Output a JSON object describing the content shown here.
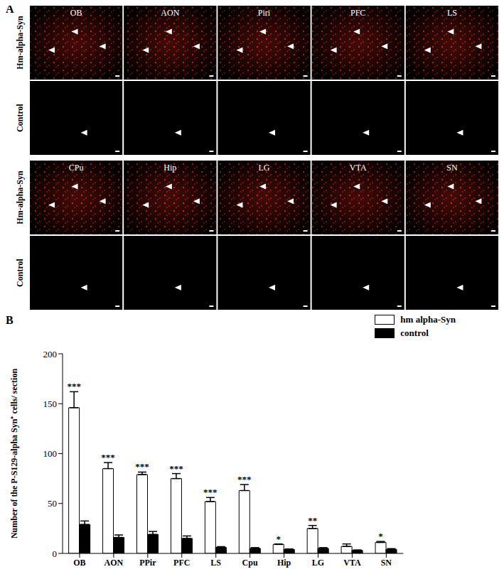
{
  "panel_a": {
    "label": "A",
    "groups": [
      {
        "regions": [
          "OB",
          "AON",
          "Piri",
          "PFC",
          "LS"
        ],
        "rows": [
          "Hm-alpha-Syn",
          "Control"
        ]
      },
      {
        "regions": [
          "CPu",
          "Hip",
          "LG",
          "VTA",
          "SN"
        ],
        "rows": [
          "Hm-alpha-Syn",
          "Control"
        ]
      }
    ]
  },
  "chart_data": {
    "type": "bar",
    "panel_label": "B",
    "y_label": "Number of the P-S129-alpha Syn⁺ cells/ section",
    "categories": [
      "OB",
      "AON",
      "PPir",
      "PFC",
      "LS",
      "Cpu",
      "Hip",
      "LG",
      "VTA",
      "SN"
    ],
    "series": [
      {
        "name": "hm alpha-Syn",
        "color": "#ffffff",
        "values": [
          146,
          85,
          79,
          75,
          52,
          63,
          9,
          25,
          7,
          11
        ],
        "errors": [
          16,
          6,
          2.5,
          5,
          4,
          6,
          0.5,
          3,
          2.5,
          1
        ]
      },
      {
        "name": "control",
        "color": "#000000",
        "values": [
          29,
          16,
          19,
          15,
          6,
          5,
          4,
          5,
          3,
          4
        ],
        "errors": [
          3.5,
          2.5,
          3,
          2.5,
          0.8,
          0.8,
          0.5,
          0.8,
          0.5,
          0.8
        ]
      }
    ],
    "significance": [
      "***",
      "***",
      "***",
      "***",
      "***",
      "***",
      "*",
      "**",
      null,
      "*"
    ],
    "ylim": [
      0,
      200
    ],
    "yticks": [
      0,
      50,
      100,
      150,
      200
    ],
    "grid": false,
    "legend": "top right"
  }
}
